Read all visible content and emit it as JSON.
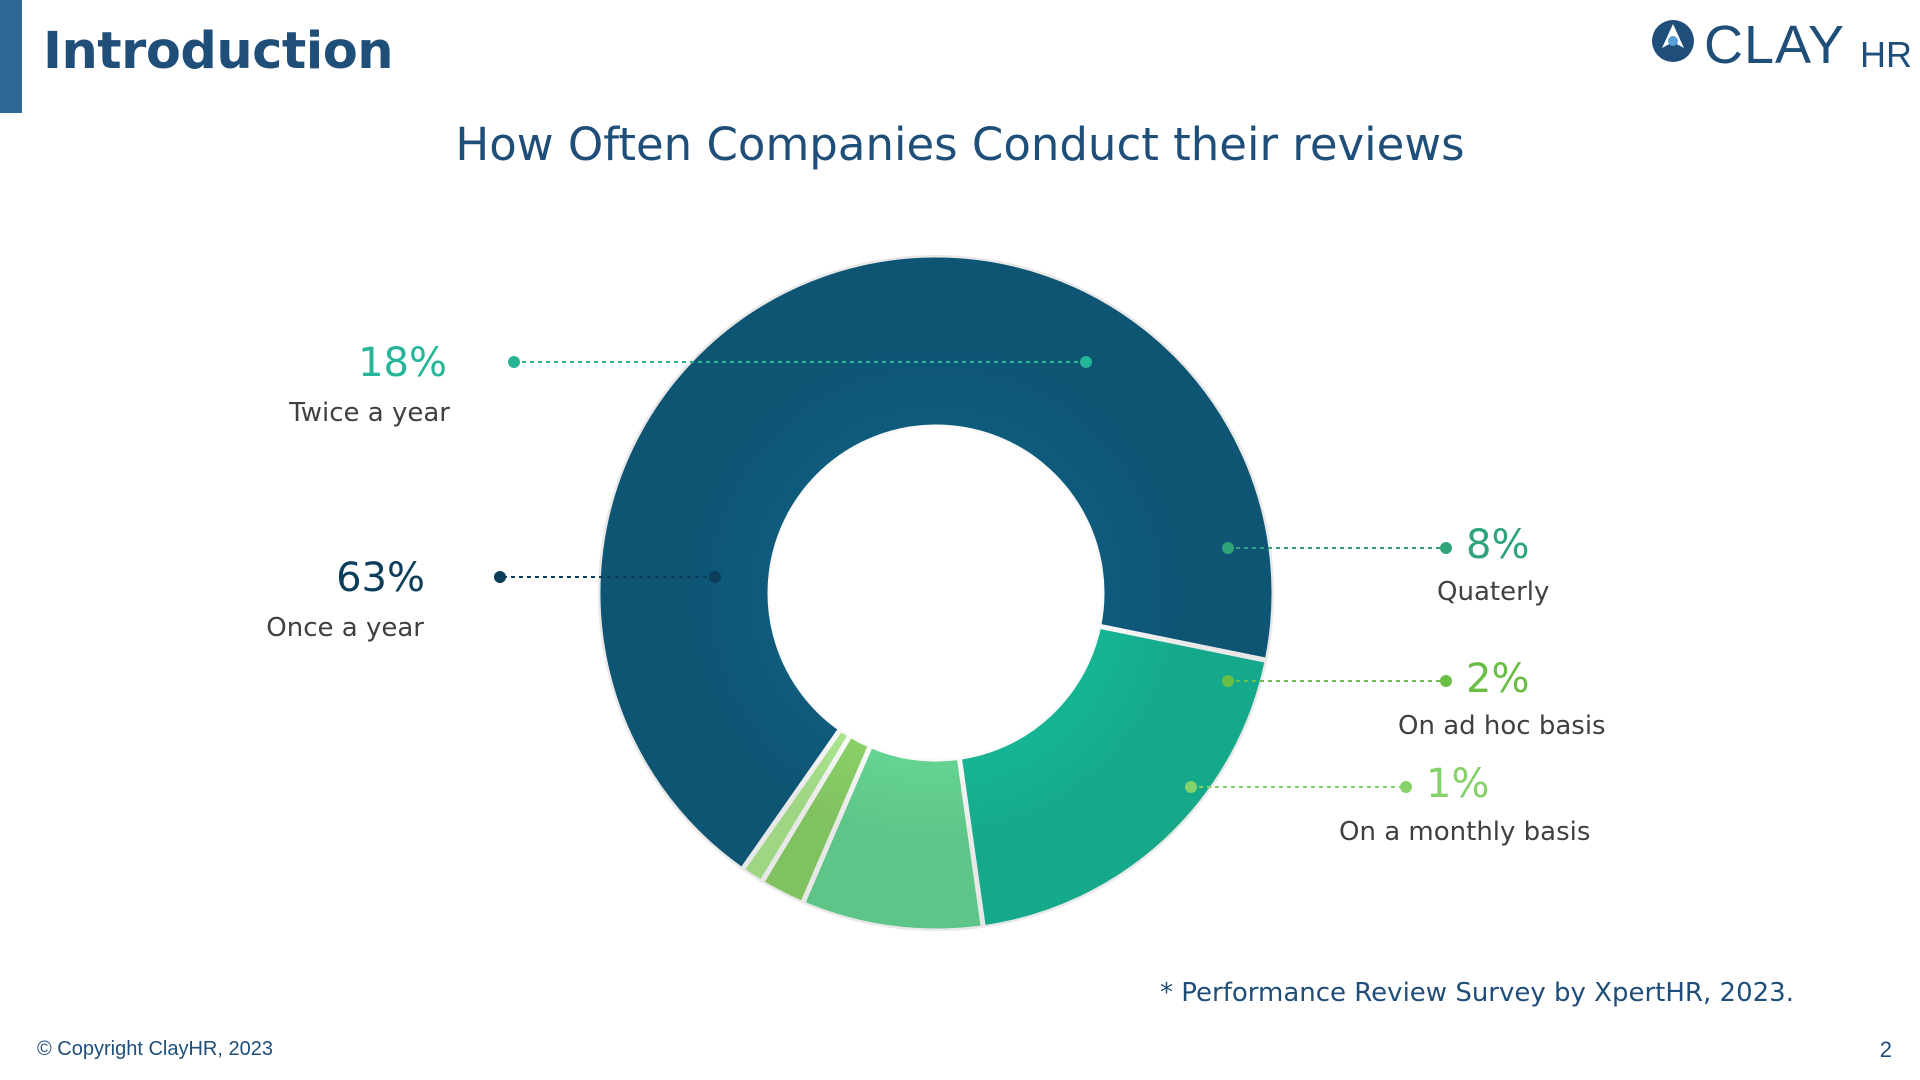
{
  "header": {
    "title": "Introduction",
    "logo_word": "CLAY",
    "logo_sub": "HR"
  },
  "chart_data": {
    "type": "pie",
    "title": "How Often Companies Conduct their reviews",
    "donut": true,
    "categories": [
      "Once a year",
      "Twice a year",
      "Quaterly",
      "On ad hoc basis",
      "On a monthly basis"
    ],
    "values": [
      63,
      18,
      8,
      2,
      1
    ],
    "value_labels": [
      "63%",
      "18%",
      "8%",
      "2%",
      "1%"
    ],
    "colors": [
      "#0f5d7f",
      "#17b997",
      "#67d895",
      "#8ed569",
      "#aeeb91"
    ],
    "label_colors": [
      "#0c3d5a",
      "#27b597",
      "#2fa478",
      "#6abe46",
      "#86d16a"
    ]
  },
  "footer": {
    "source": "* Performance Review Survey by XpertHR, 2023.",
    "copyright": "© Copyright ClayHR, 2023",
    "page_number": "2"
  }
}
